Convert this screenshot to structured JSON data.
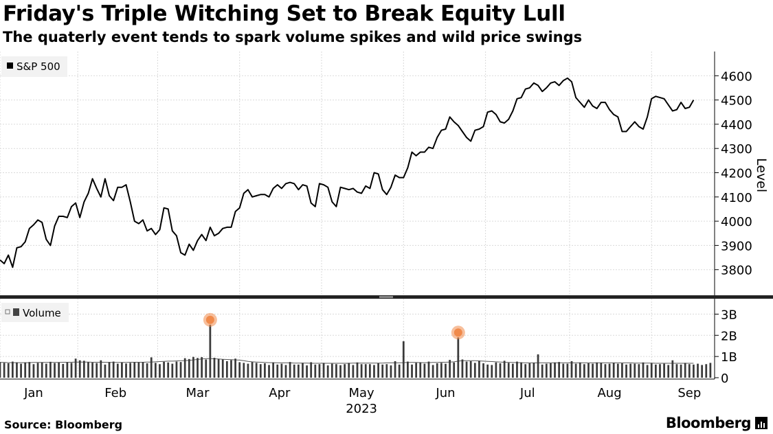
{
  "title": "Friday's Triple Witching Set to Break Equity Lull",
  "subtitle": "The quaterly event tends to spark volume spikes and wild price swings",
  "source": "Source: Bloomberg",
  "brand": "Bloomberg",
  "colors": {
    "line": "#000000",
    "bar": "#000000",
    "grid": "#d9d9d9",
    "highlight": "#f08a4b"
  },
  "chart_data": [
    {
      "type": "line",
      "legend": [
        "S&P 500"
      ],
      "ylabel": "Level",
      "ylim": [
        3700,
        4700
      ],
      "yticks": [
        3800,
        3900,
        4000,
        4100,
        4200,
        4300,
        4400,
        4500,
        4600
      ],
      "grid": true,
      "legend_position": "top-left",
      "xlim": [
        0,
        170
      ],
      "xticks": [
        {
          "label": "Jan",
          "x": 8
        },
        {
          "label": "Feb",
          "x": 27.5
        },
        {
          "label": "Mar",
          "x": 47
        },
        {
          "label": "Apr",
          "x": 66.5
        },
        {
          "label": "May",
          "x": 86
        },
        {
          "label": "Jun",
          "x": 106
        },
        {
          "label": "Jul",
          "x": 125.5
        },
        {
          "label": "Aug",
          "x": 145
        },
        {
          "label": "Sep",
          "x": 164
        }
      ],
      "xgrid": [
        0,
        18.5,
        37.5,
        57,
        76.5,
        96,
        115.5,
        135.5,
        155
      ],
      "year_label": "2023",
      "series": [
        {
          "name": "S&P 500",
          "x": [
            0,
            1,
            2,
            3,
            4,
            5,
            6,
            7,
            8,
            9,
            10,
            11,
            12,
            13,
            14,
            15,
            16,
            17,
            18,
            19,
            20,
            21,
            22,
            23,
            24,
            25,
            26,
            27,
            28,
            29,
            30,
            31,
            32,
            33,
            34,
            35,
            36,
            37,
            38,
            39,
            40,
            41,
            42,
            43,
            44,
            45,
            46,
            47,
            48,
            49,
            50,
            51,
            52,
            53,
            54,
            55,
            56,
            57,
            58,
            59,
            60,
            61,
            62,
            63,
            64,
            65,
            66,
            67,
            68,
            69,
            70,
            71,
            72,
            73,
            74,
            75,
            76,
            77,
            78,
            79,
            80,
            81,
            82,
            83,
            84,
            85,
            86,
            87,
            88,
            89,
            90,
            91,
            92,
            93,
            94,
            95,
            96,
            97,
            98,
            99,
            100,
            101,
            102,
            103,
            104,
            105,
            106,
            107,
            108,
            109,
            110,
            111,
            112,
            113,
            114,
            115,
            116,
            117,
            118,
            119,
            120,
            121,
            122,
            123,
            124,
            125,
            126,
            127,
            128,
            129,
            130,
            131,
            132,
            133,
            134,
            135,
            136,
            137,
            138,
            139,
            140,
            141,
            142,
            143,
            144,
            145,
            146,
            147,
            148,
            149,
            150,
            151,
            152,
            153,
            154,
            155,
            156,
            157,
            158,
            159,
            160,
            161,
            162,
            163,
            164,
            165
          ],
          "values": [
            3840,
            3825,
            3860,
            3810,
            3890,
            3895,
            3915,
            3970,
            3985,
            4005,
            3995,
            3925,
            3900,
            3980,
            4020,
            4020,
            4015,
            4060,
            4075,
            4015,
            4080,
            4115,
            4175,
            4135,
            4100,
            4175,
            4105,
            4085,
            4140,
            4140,
            4150,
            4080,
            4000,
            3990,
            4005,
            3960,
            3970,
            3945,
            3965,
            4055,
            4050,
            3960,
            3940,
            3870,
            3860,
            3905,
            3880,
            3920,
            3945,
            3920,
            3975,
            3940,
            3950,
            3970,
            3975,
            3975,
            4040,
            4055,
            4115,
            4130,
            4100,
            4105,
            4110,
            4110,
            4100,
            4135,
            4150,
            4135,
            4155,
            4160,
            4155,
            4130,
            4150,
            4145,
            4075,
            4060,
            4155,
            4150,
            4140,
            4080,
            4060,
            4140,
            4135,
            4130,
            4135,
            4120,
            4115,
            4145,
            4135,
            4200,
            4195,
            4130,
            4110,
            4140,
            4190,
            4180,
            4180,
            4220,
            4285,
            4270,
            4285,
            4285,
            4305,
            4300,
            4345,
            4375,
            4380,
            4430,
            4410,
            4395,
            4370,
            4345,
            4330,
            4375,
            4380,
            4390,
            4450,
            4455,
            4440,
            4410,
            4405,
            4420,
            4455,
            4505,
            4510,
            4545,
            4550,
            4570,
            4560,
            4535,
            4550,
            4570,
            4575,
            4560,
            4580,
            4590,
            4575,
            4510,
            4490,
            4470,
            4500,
            4475,
            4465,
            4490,
            4490,
            4460,
            4440,
            4430,
            4370,
            4370,
            4390,
            4410,
            4390,
            4380,
            4430,
            4505,
            4515,
            4510,
            4505,
            4480,
            4455,
            4460,
            4490,
            4465,
            4470,
            4500
          ]
        }
      ]
    },
    {
      "type": "bar",
      "legend": [
        "Volume"
      ],
      "legend_position": "top-left",
      "ylim": [
        0,
        3.5
      ],
      "yticks": [
        {
          "label": "0",
          "v": 0
        },
        {
          "label": "1B",
          "v": 1
        },
        {
          "label": "2B",
          "v": 2
        },
        {
          "label": "3B",
          "v": 3
        }
      ],
      "highlights": [
        {
          "x": 50,
          "value": 2.6
        },
        {
          "x": 109,
          "value": 2.0
        }
      ],
      "series": [
        {
          "name": "Volume",
          "moving_average_values": [
            0.72,
            0.72,
            0.71,
            0.71,
            0.71,
            0.71,
            0.71,
            0.71,
            0.72,
            0.72,
            0.72,
            0.72,
            0.72,
            0.72,
            0.72,
            0.73,
            0.73,
            0.73,
            0.74,
            0.74,
            0.74,
            0.74,
            0.73,
            0.73,
            0.73,
            0.73,
            0.72,
            0.72,
            0.72,
            0.72,
            0.72,
            0.73,
            0.73,
            0.73,
            0.73,
            0.74,
            0.74,
            0.75,
            0.76,
            0.77,
            0.78,
            0.78,
            0.79,
            0.8,
            0.8,
            0.82,
            0.84,
            0.86,
            0.88,
            0.9,
            0.9,
            0.89,
            0.88,
            0.87,
            0.86,
            0.85,
            0.84,
            0.83,
            0.8,
            0.77,
            0.75,
            0.74,
            0.73,
            0.72,
            0.71,
            0.71,
            0.7,
            0.7,
            0.7,
            0.7,
            0.69,
            0.69,
            0.69,
            0.69,
            0.68,
            0.68,
            0.68,
            0.68,
            0.68,
            0.68,
            0.68,
            0.68,
            0.68,
            0.68,
            0.69,
            0.69,
            0.69,
            0.69,
            0.69,
            0.69,
            0.69,
            0.69,
            0.7,
            0.7,
            0.7,
            0.7,
            0.71,
            0.72,
            0.72,
            0.72,
            0.71,
            0.71,
            0.71,
            0.72,
            0.72,
            0.73,
            0.73,
            0.74,
            0.75,
            0.78,
            0.8,
            0.8,
            0.8,
            0.8,
            0.79,
            0.78,
            0.77,
            0.76,
            0.75,
            0.74,
            0.73,
            0.72,
            0.72,
            0.71,
            0.71,
            0.7,
            0.7,
            0.7,
            0.7,
            0.7,
            0.7,
            0.7,
            0.7,
            0.7,
            0.7,
            0.7,
            0.7,
            0.7,
            0.7,
            0.7,
            0.7,
            0.7,
            0.7,
            0.7,
            0.7,
            0.7,
            0.7,
            0.7,
            0.7,
            0.7,
            0.7,
            0.69,
            0.69,
            0.69,
            0.69,
            0.69,
            0.68,
            0.68,
            0.68,
            0.68,
            0.68,
            0.68,
            0.68,
            0.68,
            0.68,
            0.68
          ],
          "values": [
            0.74,
            0.7,
            0.68,
            0.76,
            0.72,
            0.66,
            0.72,
            0.74,
            0.64,
            0.7,
            0.72,
            0.66,
            0.75,
            0.69,
            0.72,
            0.65,
            0.72,
            0.7,
            0.9,
            0.82,
            0.8,
            0.73,
            0.71,
            0.69,
            0.82,
            0.62,
            0.74,
            0.76,
            0.66,
            0.72,
            0.67,
            0.7,
            0.73,
            0.72,
            0.74,
            0.68,
            0.96,
            0.7,
            0.64,
            0.75,
            0.72,
            0.66,
            0.76,
            0.74,
            0.92,
            0.88,
            0.98,
            0.93,
            0.97,
            0.86,
            2.5,
            0.94,
            0.88,
            0.86,
            0.78,
            0.83,
            0.9,
            0.73,
            0.7,
            0.66,
            0.74,
            0.7,
            0.64,
            0.68,
            0.6,
            0.72,
            0.62,
            0.66,
            0.6,
            0.74,
            0.62,
            0.62,
            0.7,
            0.58,
            0.73,
            0.62,
            0.64,
            0.7,
            0.58,
            0.66,
            0.64,
            0.59,
            0.64,
            0.7,
            0.6,
            0.72,
            0.64,
            0.64,
            0.64,
            0.6,
            0.68,
            0.62,
            0.64,
            0.58,
            0.78,
            0.62,
            1.72,
            0.76,
            0.62,
            0.7,
            0.73,
            0.66,
            0.76,
            0.6,
            0.68,
            0.7,
            0.66,
            0.84,
            0.72,
            1.9,
            0.86,
            0.76,
            0.78,
            0.7,
            0.8,
            0.68,
            0.62,
            0.6,
            0.72,
            0.68,
            0.8,
            0.7,
            0.66,
            0.76,
            0.72,
            0.64,
            0.68,
            0.7,
            1.1,
            0.62,
            0.66,
            0.68,
            0.72,
            0.74,
            0.66,
            0.66,
            0.78,
            0.66,
            0.72,
            0.64,
            0.68,
            0.66,
            0.72,
            0.7,
            0.64,
            0.66,
            0.7,
            0.66,
            0.68,
            0.62,
            0.66,
            0.66,
            0.64,
            0.72,
            0.6,
            0.68,
            0.62,
            0.64,
            0.66,
            0.6,
            0.82,
            0.64,
            0.62,
            0.7,
            0.64,
            0.62,
            0.66,
            0.6,
            0.64,
            0.7
          ]
        }
      ]
    }
  ]
}
